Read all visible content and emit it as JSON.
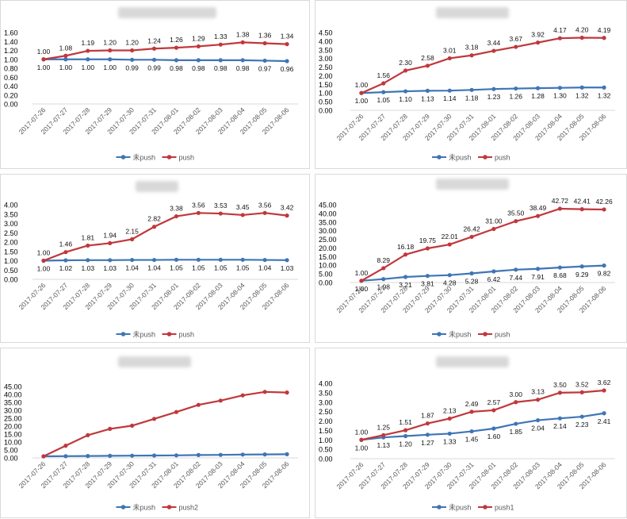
{
  "dates": [
    "2017-07-26",
    "2017-07-27",
    "2017-07-28",
    "2017-07-29",
    "2017-07-30",
    "2017-07-31",
    "2017-08-01",
    "2017-08-02",
    "2017-08-03",
    "2017-08-04",
    "2017-08-05",
    "2017-08-06"
  ],
  "colors": {
    "blue": "#3f75b5",
    "red": "#c0383c",
    "grid": "#d9d9d9",
    "text": "#595959"
  },
  "chart_data": [
    {
      "type": "line",
      "title": "",
      "ylim": [
        0,
        1.6
      ],
      "yticks": [
        "0.00",
        "0.20",
        "0.40",
        "0.60",
        "0.80",
        "1.00",
        "1.20",
        "1.40",
        "1.60"
      ],
      "series": [
        {
          "name": "未push",
          "color": "blue",
          "values": [
            1.0,
            1.0,
            1.0,
            1.0,
            0.99,
            0.99,
            0.98,
            0.98,
            0.98,
            0.98,
            0.97,
            0.96
          ],
          "labels": [
            "1.00",
            "1.00",
            "1.00",
            "1.00",
            "0.99",
            "0.99",
            "0.98",
            "0.98",
            "0.98",
            "0.98",
            "0.97",
            "0.96"
          ]
        },
        {
          "name": "push",
          "color": "red",
          "values": [
            1.0,
            1.08,
            1.19,
            1.2,
            1.2,
            1.24,
            1.26,
            1.29,
            1.33,
            1.38,
            1.36,
            1.34
          ],
          "labels": [
            "1.00",
            "1.08",
            "1.19",
            "1.20",
            "1.20",
            "1.24",
            "1.26",
            "1.29",
            "1.33",
            "1.38",
            "1.36",
            "1.34"
          ]
        }
      ]
    },
    {
      "type": "line",
      "title": "",
      "ylim": [
        0,
        4.5
      ],
      "yticks": [
        "0.00",
        "0.50",
        "1.00",
        "1.50",
        "2.00",
        "2.50",
        "3.00",
        "3.50",
        "4.00",
        "4.50"
      ],
      "series": [
        {
          "name": "未push",
          "color": "blue",
          "values": [
            1.0,
            1.05,
            1.1,
            1.13,
            1.14,
            1.18,
            1.23,
            1.26,
            1.28,
            1.3,
            1.32,
            1.32
          ],
          "labels": [
            "1.00",
            "1.05",
            "1.10",
            "1.13",
            "1.14",
            "1.18",
            "1.23",
            "1.26",
            "1.28",
            "1.30",
            "1.32",
            "1.32"
          ]
        },
        {
          "name": "push",
          "color": "red",
          "values": [
            1.0,
            1.56,
            2.3,
            2.58,
            3.01,
            3.18,
            3.44,
            3.67,
            3.92,
            4.17,
            4.2,
            4.19
          ],
          "labels": [
            "1.00",
            "1.56",
            "2.30",
            "2.58",
            "3.01",
            "3.18",
            "3.44",
            "3.67",
            "3.92",
            "4.17",
            "4.20",
            "4.19"
          ]
        }
      ]
    },
    {
      "type": "line",
      "title": "",
      "ylim": [
        0,
        4.0
      ],
      "yticks": [
        "0.00",
        "0.50",
        "1.00",
        "1.50",
        "2.00",
        "2.50",
        "3.00",
        "3.50",
        "4.00"
      ],
      "series": [
        {
          "name": "未push",
          "color": "blue",
          "values": [
            1.0,
            1.02,
            1.03,
            1.03,
            1.04,
            1.04,
            1.05,
            1.05,
            1.05,
            1.05,
            1.04,
            1.03
          ],
          "labels": [
            "1.00",
            "1.02",
            "1.03",
            "1.03",
            "1.04",
            "1.04",
            "1.05",
            "1.05",
            "1.05",
            "1.05",
            "1.04",
            "1.03"
          ]
        },
        {
          "name": "push",
          "color": "red",
          "values": [
            1.0,
            1.46,
            1.81,
            1.94,
            2.15,
            2.82,
            3.38,
            3.56,
            3.53,
            3.45,
            3.56,
            3.42
          ],
          "labels": [
            "1.00",
            "1.46",
            "1.81",
            "1.94",
            "2.15",
            "2.82",
            "3.38",
            "3.56",
            "3.53",
            "3.45",
            "3.56",
            "3.42"
          ]
        }
      ]
    },
    {
      "type": "line",
      "title": "",
      "ylim": [
        0,
        45
      ],
      "yticks": [
        "0.00",
        "5.00",
        "10.00",
        "15.00",
        "20.00",
        "25.00",
        "30.00",
        "35.00",
        "40.00",
        "45.00"
      ],
      "series": [
        {
          "name": "未push",
          "color": "blue",
          "values": [
            1.0,
            1.98,
            3.21,
            3.81,
            4.28,
            5.28,
            6.42,
            7.44,
            7.91,
            8.68,
            9.29,
            9.82
          ],
          "labels": [
            "1.00",
            "1.98",
            "3.21",
            "3.81",
            "4.28",
            "5.28",
            "6.42",
            "7.44",
            "7.91",
            "8.68",
            "9.29",
            "9.82"
          ]
        },
        {
          "name": "push",
          "color": "red",
          "values": [
            1.0,
            8.29,
            16.18,
            19.75,
            22.01,
            26.42,
            31.0,
            35.5,
            38.49,
            42.72,
            42.41,
            42.26
          ],
          "labels": [
            "1.00",
            "8.29",
            "16.18",
            "19.75",
            "22.01",
            "26.42",
            "31.00",
            "35.50",
            "38.49",
            "42.72",
            "42.41",
            "42.26"
          ]
        }
      ]
    },
    {
      "type": "line",
      "title": "",
      "ylim": [
        0,
        45
      ],
      "yticks": [
        "0.00",
        "5.00",
        "10.00",
        "15.00",
        "20.00",
        "25.00",
        "30.00",
        "35.00",
        "40.00",
        "45.00"
      ],
      "series": [
        {
          "name": "未push",
          "color": "blue",
          "values": [
            1.0,
            1.1,
            1.2,
            1.3,
            1.4,
            1.5,
            1.6,
            1.8,
            1.9,
            2.1,
            2.2,
            2.3
          ],
          "labels": []
        },
        {
          "name": "push2",
          "color": "red",
          "values": [
            1.0,
            7.7,
            14.3,
            18.3,
            20.3,
            24.6,
            28.9,
            33.4,
            36.1,
            39.4,
            41.6,
            41.2
          ],
          "labels": []
        }
      ]
    },
    {
      "type": "line",
      "title": "",
      "ylim": [
        0,
        4.0
      ],
      "yticks": [
        "0.00",
        "0.50",
        "1.00",
        "1.50",
        "2.00",
        "2.50",
        "3.00",
        "3.50",
        "4.00"
      ],
      "series": [
        {
          "name": "未push",
          "color": "blue",
          "values": [
            1.0,
            1.13,
            1.2,
            1.27,
            1.33,
            1.45,
            1.6,
            1.85,
            2.04,
            2.14,
            2.23,
            2.41
          ],
          "labels": [
            "1.00",
            "1.13",
            "1.20",
            "1.27",
            "1.33",
            "1.45",
            "1.60",
            "1.85",
            "2.04",
            "2.14",
            "2.23",
            "2.41"
          ]
        },
        {
          "name": "push1",
          "color": "red",
          "values": [
            1.0,
            1.25,
            1.51,
            1.87,
            2.13,
            2.49,
            2.57,
            3.0,
            3.13,
            3.5,
            3.52,
            3.62
          ],
          "labels": [
            "1.00",
            "1.25",
            "1.51",
            "1.87",
            "2.13",
            "2.49",
            "2.57",
            "3.00",
            "3.13",
            "3.50",
            "3.52",
            "3.62"
          ]
        }
      ]
    }
  ]
}
